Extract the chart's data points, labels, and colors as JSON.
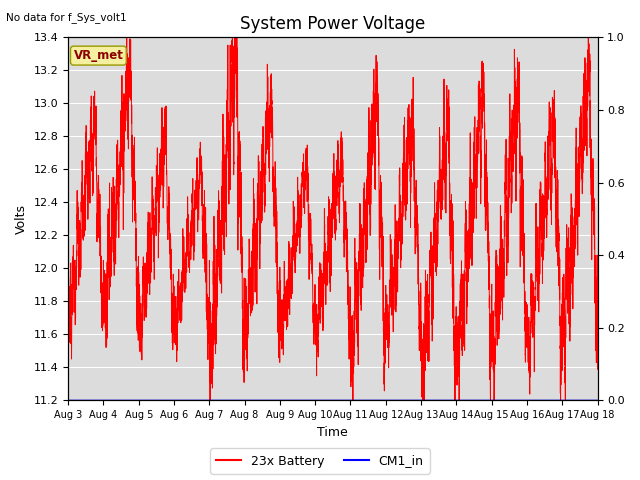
{
  "title": "System Power Voltage",
  "xlabel": "Time",
  "ylabel": "Volts",
  "top_left_text": "No data for f_Sys_volt1",
  "annotation_box_text": "VR_met",
  "ylim_left": [
    11.2,
    13.4
  ],
  "ylim_right": [
    0.0,
    1.0
  ],
  "right_yticks": [
    0.0,
    0.2,
    0.4,
    0.6,
    0.8,
    1.0
  ],
  "left_yticks": [
    11.2,
    11.4,
    11.6,
    11.8,
    12.0,
    12.2,
    12.4,
    12.6,
    12.8,
    13.0,
    13.2,
    13.4
  ],
  "x_tick_labels": [
    "Aug 3",
    "Aug 4",
    "Aug 5",
    "Aug 6",
    "Aug 7",
    "Aug 8",
    "Aug 9",
    "Aug 10",
    "Aug 11",
    "Aug 12",
    "Aug 13",
    "Aug 14",
    "Aug 15",
    "Aug 16",
    "Aug 17",
    "Aug 18"
  ],
  "total_days": 15,
  "background_color": "#dcdcdc",
  "figure_bg": "#ffffff",
  "grid_color": "#ffffff",
  "cm1_value": 11.2,
  "legend": [
    {
      "label": "23x Battery",
      "color": "red"
    },
    {
      "label": "CM1_in",
      "color": "blue"
    }
  ]
}
